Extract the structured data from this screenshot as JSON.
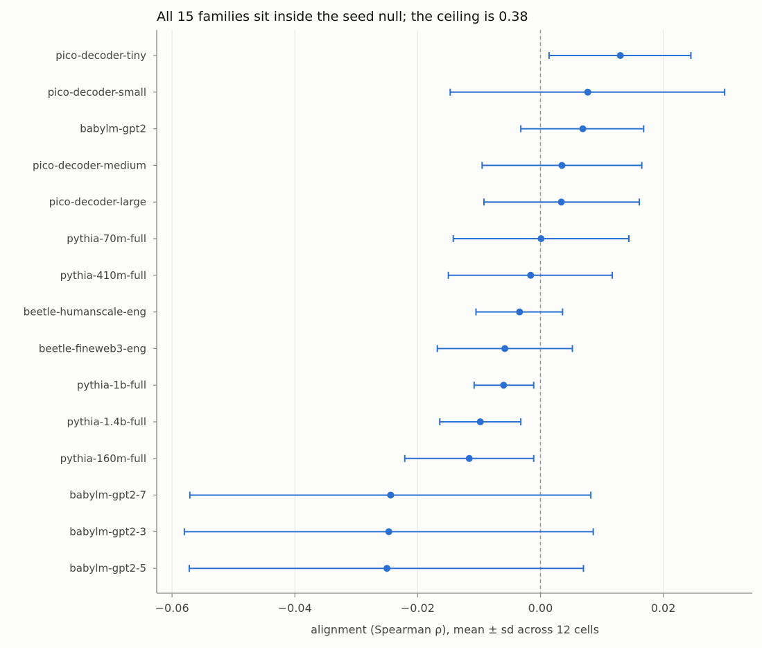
{
  "chart_data": {
    "type": "errorbar",
    "title": "All 15 families sit inside the seed null; the ceiling is 0.38",
    "xlabel": "alignment (Spearman ρ), mean ± sd across 12 cells",
    "ylabel": "",
    "xlim": [
      -0.0625,
      0.0345
    ],
    "xticks": [
      -0.06,
      -0.04,
      -0.02,
      0.0,
      0.02
    ],
    "xtick_labels": [
      "−0.06",
      "−0.04",
      "−0.02",
      "0.00",
      "0.02"
    ],
    "grid": "vertical",
    "reference_line": 0.0,
    "colors": {
      "marker": "#2a6fd1",
      "reference": "#999999",
      "grid": "#e6e6e6",
      "axis": "#888888",
      "background": "#fcfcfa"
    },
    "series": [
      {
        "label": "pico-decoder-tiny",
        "mean": 0.013,
        "lo": 0.0014,
        "hi": 0.0245
      },
      {
        "label": "pico-decoder-small",
        "mean": 0.0077,
        "lo": -0.0147,
        "hi": 0.03
      },
      {
        "label": "babylm-gpt2",
        "mean": 0.0069,
        "lo": -0.0032,
        "hi": 0.0168
      },
      {
        "label": "pico-decoder-medium",
        "mean": 0.0035,
        "lo": -0.0095,
        "hi": 0.0165
      },
      {
        "label": "pico-decoder-large",
        "mean": 0.0034,
        "lo": -0.0092,
        "hi": 0.0161
      },
      {
        "label": "pythia-70m-full",
        "mean": 0.0001,
        "lo": -0.0142,
        "hi": 0.0144
      },
      {
        "label": "pythia-410m-full",
        "mean": -0.0016,
        "lo": -0.015,
        "hi": 0.0117
      },
      {
        "label": "beetle-humanscale-eng",
        "mean": -0.0034,
        "lo": -0.0105,
        "hi": 0.0036
      },
      {
        "label": "beetle-fineweb3-eng",
        "mean": -0.0058,
        "lo": -0.0168,
        "hi": 0.0052
      },
      {
        "label": "pythia-1b-full",
        "mean": -0.006,
        "lo": -0.0108,
        "hi": -0.0011
      },
      {
        "label": "pythia-1.4b-full",
        "mean": -0.0098,
        "lo": -0.0164,
        "hi": -0.0032
      },
      {
        "label": "pythia-160m-full",
        "mean": -0.0116,
        "lo": -0.0221,
        "hi": -0.0011
      },
      {
        "label": "babylm-gpt2-7",
        "mean": -0.0244,
        "lo": -0.0571,
        "hi": 0.0082
      },
      {
        "label": "babylm-gpt2-3",
        "mean": -0.0247,
        "lo": -0.058,
        "hi": 0.0086
      },
      {
        "label": "babylm-gpt2-5",
        "mean": -0.025,
        "lo": -0.0572,
        "hi": 0.007
      }
    ]
  }
}
